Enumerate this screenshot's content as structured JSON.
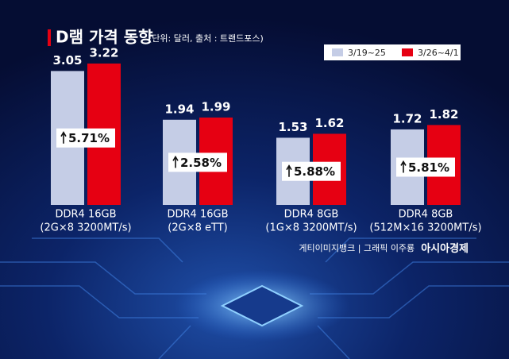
{
  "chart_data": {
    "type": "bar",
    "title": "D램 가격 동향",
    "subtitle": "(단위: 달러, 출처 : 트랜드포스)",
    "categories": [
      [
        "DDR4 16GB",
        "(2G×8 3200MT/s)"
      ],
      [
        "DDR4 16GB",
        "(2G×8 eTT)"
      ],
      [
        "DDR4 8GB",
        "(1G×8 3200MT/s)"
      ],
      [
        "DDR4 8GB",
        "(512M×16 3200MT/s)"
      ]
    ],
    "series": [
      {
        "name": "3/19~25",
        "color": "#c5cde6",
        "values": [
          3.05,
          1.94,
          1.53,
          1.72
        ]
      },
      {
        "name": "3/26~4/1",
        "color": "#e60012",
        "values": [
          3.22,
          1.99,
          1.62,
          1.82
        ]
      }
    ],
    "annotations": [
      "5.71%",
      "2.58%",
      "5.88%",
      "5.81%"
    ],
    "credit": "게티이미지뱅크  |  그래픽 이주룡",
    "brand": "아시아경제"
  }
}
